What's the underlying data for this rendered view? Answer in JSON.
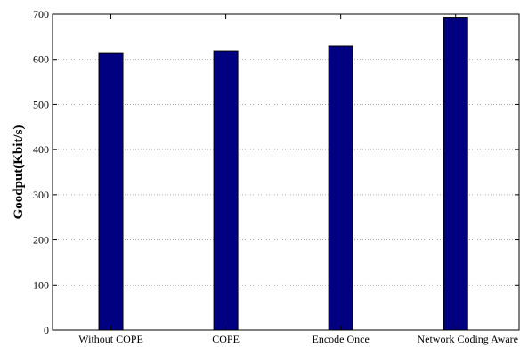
{
  "chart_data": {
    "type": "bar",
    "categories": [
      "Without COPE",
      "COPE",
      "Encode Once",
      "Network Coding Aware"
    ],
    "values": [
      613,
      619,
      629,
      693
    ],
    "title": "",
    "xlabel": "",
    "ylabel": "Goodput(Kbit/s)",
    "ylim": [
      0,
      700
    ],
    "yticks": [
      0,
      100,
      200,
      300,
      400,
      500,
      600,
      700
    ],
    "grid": true,
    "legend": "none",
    "bar_color": "#000080"
  }
}
